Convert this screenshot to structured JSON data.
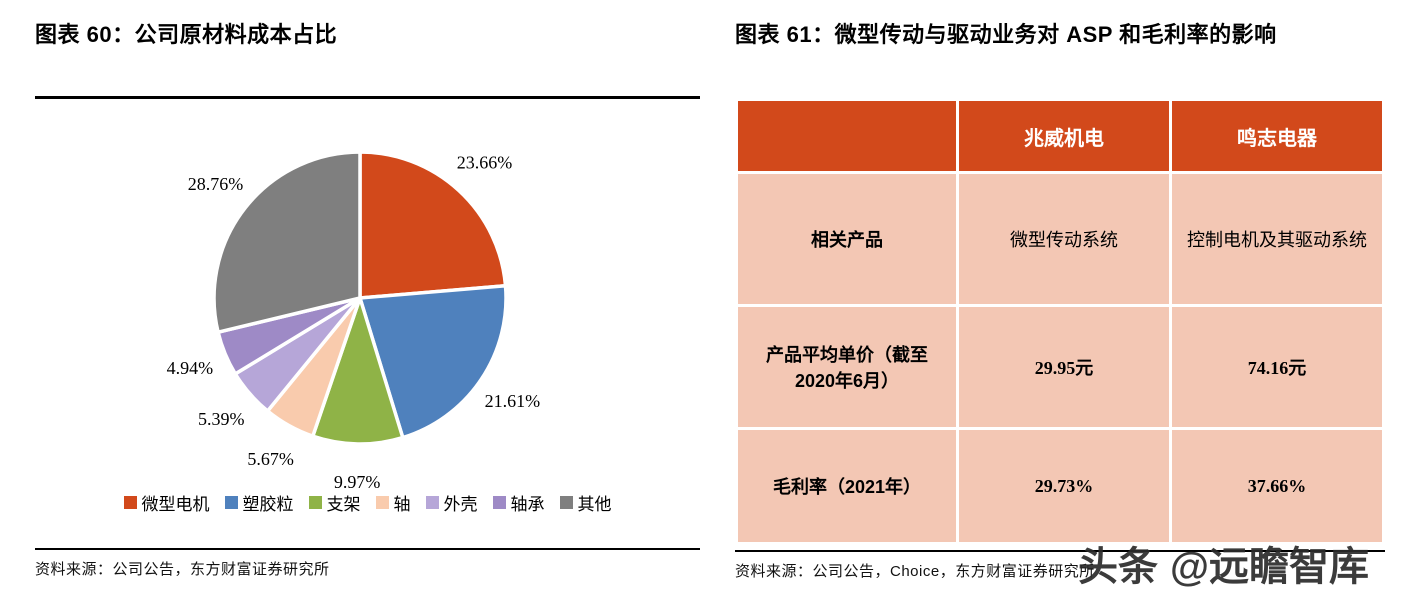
{
  "left": {
    "title": "图表 60：公司原材料成本占比",
    "source": "资料来源：公司公告，东方财富证券研究所"
  },
  "right": {
    "title": "图表 61：微型传动与驱动业务对 ASP 和毛利率的影响",
    "source": "资料来源：公司公告，Choice，东方财富证券研究所"
  },
  "watermark": {
    "brand": "头条",
    "handle": "@远瞻智库"
  },
  "colors": {
    "accent_red": "#d2491b",
    "table_row_bg": "#f3c7b4",
    "rule_black": "#000000"
  },
  "chart_data": [
    {
      "type": "pie",
      "title": "公司原材料成本占比",
      "categories": [
        "微型电机",
        "塑胶粒",
        "支架",
        "轴",
        "外壳",
        "轴承",
        "其他"
      ],
      "values": [
        23.66,
        21.61,
        9.97,
        5.67,
        5.39,
        4.94,
        28.76
      ],
      "labels": [
        "23.66%",
        "21.61%",
        "9.97%",
        "5.67%",
        "5.39%",
        "4.94%",
        "28.76%"
      ],
      "colors": [
        "#d2491b",
        "#4f81bd",
        "#8fb347",
        "#f9cbad",
        "#b6a6d8",
        "#9e8ac6",
        "#7f7f7f"
      ],
      "legend_position": "bottom",
      "start_angle_deg": 0,
      "direction": "clockwise"
    },
    {
      "type": "table",
      "title": "微型传动与驱动业务对 ASP 和毛利率的影响",
      "columns": [
        "",
        "兆威机电",
        "鸣志电器"
      ],
      "rows": [
        [
          "相关产品",
          "微型传动系统",
          "控制电机及其驱动系统"
        ],
        [
          "产品平均单价（截至2020年6月）",
          "29.95元",
          "74.16元"
        ],
        [
          "毛利率（2021年）",
          "29.73%",
          "37.66%"
        ]
      ],
      "header_bg": "#d2491b",
      "row_bg": "#f3c7b4",
      "header_text_color": "#ffffff"
    }
  ]
}
